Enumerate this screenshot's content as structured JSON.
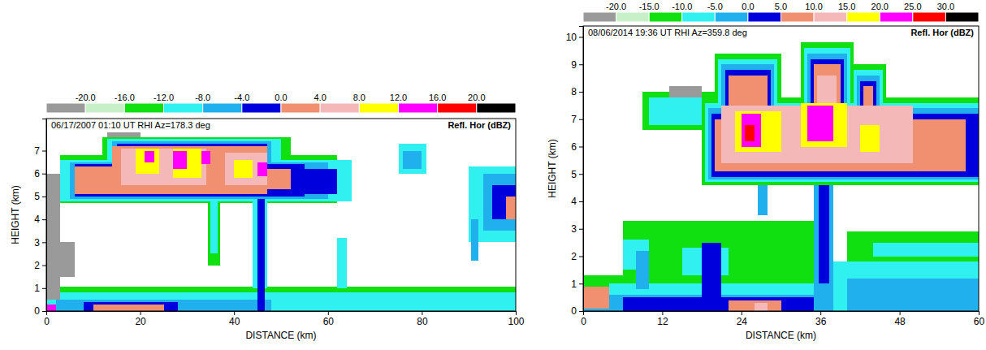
{
  "chart_data": [
    {
      "type": "heatmap",
      "title": "06/17/2007 01:10 UT RHI Az=178.3 deg",
      "subtitle": "Refl. Hor (dBZ)",
      "xlabel": "DISTANCE (km)",
      "ylabel": "HEIGHT (km)",
      "xlim": [
        0,
        100
      ],
      "xticks": [
        0,
        20,
        40,
        60,
        80,
        100
      ],
      "ylim": [
        0,
        8.4
      ],
      "yticks": [
        0,
        1,
        2,
        3,
        4,
        5,
        6,
        7
      ],
      "colorbar": {
        "bounds": [
          -24,
          -20,
          -16,
          -12,
          -8,
          -4,
          0,
          4,
          8,
          12,
          16,
          20,
          24
        ],
        "colors": [
          "#9a9a9a",
          "#c8f0c8",
          "#10e010",
          "#30f0f0",
          "#20b0ee",
          "#0000dd",
          "#f09070",
          "#f4b8b8",
          "#ffff00",
          "#ff00ff",
          "#ff0000",
          "#000000"
        ],
        "ticks": [
          {
            "value": -20,
            "label": "-20.0"
          },
          {
            "value": -16,
            "label": "-16.0"
          },
          {
            "value": -12,
            "label": "-12.0"
          },
          {
            "value": -8,
            "label": "-8.0"
          },
          {
            "value": -4,
            "label": "-4.0"
          },
          {
            "value": 0,
            "label": "0.0"
          },
          {
            "value": 4,
            "label": "4.0"
          },
          {
            "value": 8,
            "label": "8.0"
          },
          {
            "value": 12,
            "label": "12.0"
          },
          {
            "value": 16,
            "label": "16.0"
          },
          {
            "value": 20,
            "label": "20.0"
          }
        ]
      },
      "cells": [
        {
          "x": [
            0,
            100
          ],
          "y": [
            0,
            1.05
          ],
          "value": -14
        },
        {
          "x": [
            0,
            100
          ],
          "y": [
            0,
            0.8
          ],
          "value": -10
        },
        {
          "x": [
            2,
            48
          ],
          "y": [
            0,
            0.5
          ],
          "value": -6
        },
        {
          "x": [
            8,
            28
          ],
          "y": [
            0,
            0.4
          ],
          "value": -2
        },
        {
          "x": [
            10,
            25
          ],
          "y": [
            0,
            0.3
          ],
          "value": 2
        },
        {
          "x": [
            0,
            2
          ],
          "y": [
            0,
            0.3
          ],
          "value": 14
        },
        {
          "x": [
            0,
            3
          ],
          "y": [
            0.5,
            6
          ],
          "value": -22
        },
        {
          "x": [
            3,
            6
          ],
          "y": [
            1.5,
            3
          ],
          "value": -22
        },
        {
          "x": [
            3,
            12
          ],
          "y": [
            6.3,
            6.8
          ],
          "value": -22
        },
        {
          "x": [
            13,
            20
          ],
          "y": [
            7.4,
            7.8
          ],
          "value": -22
        },
        {
          "x": [
            3,
            62
          ],
          "y": [
            4.7,
            6.8
          ],
          "value": -14
        },
        {
          "x": [
            12,
            52
          ],
          "y": [
            6.5,
            7.6
          ],
          "value": -14
        },
        {
          "x": [
            3,
            65
          ],
          "y": [
            4.8,
            6.6
          ],
          "value": -10
        },
        {
          "x": [
            13,
            50
          ],
          "y": [
            6.5,
            7.5
          ],
          "value": -10
        },
        {
          "x": [
            5,
            60
          ],
          "y": [
            4.9,
            6.5
          ],
          "value": -6
        },
        {
          "x": [
            14,
            48
          ],
          "y": [
            6.4,
            7.4
          ],
          "value": -6
        },
        {
          "x": [
            6,
            55
          ],
          "y": [
            5.0,
            6.4
          ],
          "value": -2
        },
        {
          "x": [
            15,
            47
          ],
          "y": [
            6.3,
            7.3
          ],
          "value": -2
        },
        {
          "x": [
            55,
            62
          ],
          "y": [
            5.1,
            6.2
          ],
          "value": -2
        },
        {
          "x": [
            6,
            14
          ],
          "y": [
            5.1,
            6.3
          ],
          "value": 2
        },
        {
          "x": [
            14,
            47
          ],
          "y": [
            5.1,
            7.2
          ],
          "value": 2
        },
        {
          "x": [
            47,
            52
          ],
          "y": [
            5.3,
            6.2
          ],
          "value": 2
        },
        {
          "x": [
            16,
            34
          ],
          "y": [
            5.5,
            7.1
          ],
          "value": 6
        },
        {
          "x": [
            38,
            47
          ],
          "y": [
            5.5,
            6.9
          ],
          "value": 6
        },
        {
          "x": [
            19,
            24
          ],
          "y": [
            6.0,
            7.1
          ],
          "value": 10
        },
        {
          "x": [
            27,
            33
          ],
          "y": [
            5.8,
            7.1
          ],
          "value": 10
        },
        {
          "x": [
            40,
            44
          ],
          "y": [
            5.8,
            6.6
          ],
          "value": 10
        },
        {
          "x": [
            21,
            23
          ],
          "y": [
            6.5,
            7.0
          ],
          "value": 14
        },
        {
          "x": [
            27,
            30
          ],
          "y": [
            6.2,
            7.0
          ],
          "value": 14
        },
        {
          "x": [
            33,
            35
          ],
          "y": [
            6.4,
            7.0
          ],
          "value": 14
        },
        {
          "x": [
            45,
            47
          ],
          "y": [
            5.9,
            6.5
          ],
          "value": 14
        },
        {
          "x": [
            34.5,
            37
          ],
          "y": [
            2,
            4.8
          ],
          "value": -14
        },
        {
          "x": [
            35,
            36.5
          ],
          "y": [
            2.5,
            4.8
          ],
          "value": -10
        },
        {
          "x": [
            44,
            47
          ],
          "y": [
            1,
            4.9
          ],
          "value": -10
        },
        {
          "x": [
            45,
            46.5
          ],
          "y": [
            0,
            4.9
          ],
          "value": -2
        },
        {
          "x": [
            62,
            64
          ],
          "y": [
            1,
            3.2
          ],
          "value": -10
        },
        {
          "x": [
            75,
            81
          ],
          "y": [
            6,
            7.3
          ],
          "value": -10
        },
        {
          "x": [
            76,
            80
          ],
          "y": [
            6.2,
            7.0
          ],
          "value": -6
        },
        {
          "x": [
            90,
            100
          ],
          "y": [
            3,
            6.3
          ],
          "value": -10
        },
        {
          "x": [
            93,
            100
          ],
          "y": [
            3.5,
            6
          ],
          "value": -6
        },
        {
          "x": [
            95,
            100
          ],
          "y": [
            4,
            5.5
          ],
          "value": -2
        },
        {
          "x": [
            98,
            100
          ],
          "y": [
            4,
            5
          ],
          "value": 2
        },
        {
          "x": [
            90.5,
            92
          ],
          "y": [
            2.2,
            4
          ],
          "value": -6
        }
      ]
    },
    {
      "type": "heatmap",
      "title": "08/06/2014 19:36 UT RHI Az=359.8 deg",
      "subtitle": "Refl. Hor (dBZ)",
      "xlabel": "DISTANCE (km)",
      "ylabel": "HEIGHT (km)",
      "xlim": [
        0,
        60
      ],
      "xticks": [
        0,
        12,
        24,
        36,
        48,
        60
      ],
      "ylim": [
        0,
        10.4
      ],
      "yticks": [
        0,
        1,
        2,
        3,
        4,
        5,
        6,
        7,
        8,
        9,
        10
      ],
      "colorbar": {
        "bounds": [
          -25,
          -20,
          -15,
          -10,
          -5,
          0,
          5,
          10,
          15,
          20,
          25,
          30,
          35
        ],
        "colors": [
          "#9a9a9a",
          "#c8f0c8",
          "#10e010",
          "#30f0f0",
          "#20b0ee",
          "#0000dd",
          "#f09070",
          "#f4b8b8",
          "#ffff00",
          "#ff00ff",
          "#ff0000",
          "#000000"
        ],
        "ticks": [
          {
            "value": -20,
            "label": "-20.0"
          },
          {
            "value": -15,
            "label": "-15.0"
          },
          {
            "value": -10,
            "label": "-10.0"
          },
          {
            "value": -5,
            "label": "-5.0"
          },
          {
            "value": 0,
            "label": "0.0"
          },
          {
            "value": 5,
            "label": "5.0"
          },
          {
            "value": 10,
            "label": "10.0"
          },
          {
            "value": 15,
            "label": "15.0"
          },
          {
            "value": 20,
            "label": "20.0"
          },
          {
            "value": 25,
            "label": "25.0"
          },
          {
            "value": 30,
            "label": "30.0"
          }
        ]
      },
      "cells": [
        {
          "x": [
            0,
            60
          ],
          "y": [
            0,
            1.3
          ],
          "value": -12
        },
        {
          "x": [
            4,
            60
          ],
          "y": [
            0,
            1.0
          ],
          "value": -7
        },
        {
          "x": [
            0,
            60
          ],
          "y": [
            0,
            0.6
          ],
          "value": -2
        },
        {
          "x": [
            6,
            35
          ],
          "y": [
            0,
            0.5
          ],
          "value": 2
        },
        {
          "x": [
            0,
            4
          ],
          "y": [
            0.1,
            0.9
          ],
          "value": 7
        },
        {
          "x": [
            22,
            30
          ],
          "y": [
            0,
            0.4
          ],
          "value": 7
        },
        {
          "x": [
            26,
            28
          ],
          "y": [
            0,
            0.3
          ],
          "value": 12
        },
        {
          "x": [
            43,
            47
          ],
          "y": [
            0,
            0.6
          ],
          "value": 2
        },
        {
          "x": [
            6,
            38
          ],
          "y": [
            1.3,
            3.3
          ],
          "value": -12
        },
        {
          "x": [
            6,
            10
          ],
          "y": [
            1.5,
            2.6
          ],
          "value": -7
        },
        {
          "x": [
            15,
            22
          ],
          "y": [
            1.3,
            2.3
          ],
          "value": -7
        },
        {
          "x": [
            8,
            10
          ],
          "y": [
            0.8,
            2.2
          ],
          "value": -2
        },
        {
          "x": [
            18,
            21
          ],
          "y": [
            0.5,
            2.5
          ],
          "value": 2
        },
        {
          "x": [
            38,
            60
          ],
          "y": [
            0,
            1.8
          ],
          "value": -7
        },
        {
          "x": [
            40,
            60
          ],
          "y": [
            0,
            1.2
          ],
          "value": -2
        },
        {
          "x": [
            40,
            60
          ],
          "y": [
            1.8,
            2.9
          ],
          "value": -12
        },
        {
          "x": [
            44,
            60
          ],
          "y": [
            2,
            2.5
          ],
          "value": -7
        },
        {
          "x": [
            35,
            38
          ],
          "y": [
            0.5,
            5.2
          ],
          "value": -2
        },
        {
          "x": [
            35.7,
            37.3
          ],
          "y": [
            1,
            5
          ],
          "value": 2
        },
        {
          "x": [
            26.5,
            28
          ],
          "y": [
            3.5,
            5
          ],
          "value": -2
        },
        {
          "x": [
            9,
            20
          ],
          "y": [
            6.6,
            8.0
          ],
          "value": -12
        },
        {
          "x": [
            10,
            20
          ],
          "y": [
            6.8,
            7.8
          ],
          "value": -7
        },
        {
          "x": [
            13,
            18
          ],
          "y": [
            7.8,
            8.2
          ],
          "value": -22
        },
        {
          "x": [
            18,
            60
          ],
          "y": [
            4.6,
            7.8
          ],
          "value": -12
        },
        {
          "x": [
            20,
            30
          ],
          "y": [
            7.5,
            9.4
          ],
          "value": -12
        },
        {
          "x": [
            33,
            41
          ],
          "y": [
            7.5,
            9.8
          ],
          "value": -12
        },
        {
          "x": [
            41,
            46
          ],
          "y": [
            7.5,
            9.0
          ],
          "value": -12
        },
        {
          "x": [
            18.5,
            60
          ],
          "y": [
            4.7,
            7.6
          ],
          "value": -7
        },
        {
          "x": [
            20.5,
            29.5
          ],
          "y": [
            7.4,
            9.2
          ],
          "value": -7
        },
        {
          "x": [
            33.5,
            40.5
          ],
          "y": [
            7.4,
            9.6
          ],
          "value": -7
        },
        {
          "x": [
            41,
            45.5
          ],
          "y": [
            7.4,
            8.8
          ],
          "value": -7
        },
        {
          "x": [
            19,
            60
          ],
          "y": [
            4.8,
            7.4
          ],
          "value": -2
        },
        {
          "x": [
            21,
            29
          ],
          "y": [
            7.3,
            9.0
          ],
          "value": -2
        },
        {
          "x": [
            34,
            40
          ],
          "y": [
            7.3,
            9.4
          ],
          "value": -2
        },
        {
          "x": [
            41.5,
            45
          ],
          "y": [
            7.3,
            8.6
          ],
          "value": -2
        },
        {
          "x": [
            19.5,
            60
          ],
          "y": [
            4.9,
            7.2
          ],
          "value": 2
        },
        {
          "x": [
            21.5,
            28.5
          ],
          "y": [
            7.2,
            8.8
          ],
          "value": 2
        },
        {
          "x": [
            34.5,
            39.5
          ],
          "y": [
            7.2,
            9.2
          ],
          "value": 2
        },
        {
          "x": [
            42,
            44.5
          ],
          "y": [
            7.2,
            8.4
          ],
          "value": 2
        },
        {
          "x": [
            20,
            58
          ],
          "y": [
            5.1,
            7.0
          ],
          "value": 7
        },
        {
          "x": [
            22,
            28
          ],
          "y": [
            7,
            8.6
          ],
          "value": 7
        },
        {
          "x": [
            35,
            39
          ],
          "y": [
            7,
            9.0
          ],
          "value": 7
        },
        {
          "x": [
            42.5,
            44
          ],
          "y": [
            7,
            8.2
          ],
          "value": 7
        },
        {
          "x": [
            21,
            50
          ],
          "y": [
            5.4,
            7.5
          ],
          "value": 12
        },
        {
          "x": [
            35.5,
            38.5
          ],
          "y": [
            7.5,
            8.6
          ],
          "value": 12
        },
        {
          "x": [
            23,
            30
          ],
          "y": [
            5.8,
            7.3
          ],
          "value": 17
        },
        {
          "x": [
            33,
            40
          ],
          "y": [
            6.0,
            7.6
          ],
          "value": 17
        },
        {
          "x": [
            42,
            45
          ],
          "y": [
            5.8,
            6.8
          ],
          "value": 17
        },
        {
          "x": [
            24,
            27
          ],
          "y": [
            6.0,
            7.2
          ],
          "value": 22
        },
        {
          "x": [
            34,
            38
          ],
          "y": [
            6.2,
            7.5
          ],
          "value": 22
        },
        {
          "x": [
            24.5,
            26
          ],
          "y": [
            6.2,
            6.8
          ],
          "value": 27
        }
      ]
    }
  ]
}
